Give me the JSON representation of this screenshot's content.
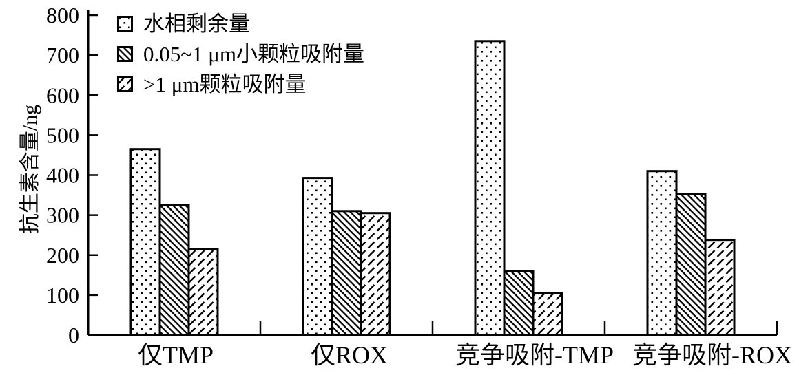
{
  "chart_data": {
    "type": "bar",
    "title": "",
    "ylabel": "抗生素含量/ng",
    "xlabel": "",
    "ylim": [
      0,
      800
    ],
    "y_ticks": [
      0,
      100,
      200,
      300,
      400,
      500,
      600,
      700,
      800
    ],
    "grid": false,
    "legend_position": "top-left",
    "categories": [
      "仅TMP",
      "仅ROX",
      "竞争吸附-TMP",
      "竞争吸附-ROX"
    ],
    "series": [
      {
        "name": "水相剩余量",
        "pattern": "dots",
        "values": [
          465,
          393,
          735,
          410
        ]
      },
      {
        "name": "0.05~1 μm小颗粒吸附量",
        "pattern": "backslash",
        "values": [
          325,
          310,
          160,
          352
        ]
      },
      {
        "name": ">1 μm颗粒吸附量",
        "pattern": "slash",
        "values": [
          215,
          305,
          105,
          238
        ]
      }
    ],
    "colors": {
      "foreground": "#000000",
      "background": "#ffffff"
    }
  }
}
